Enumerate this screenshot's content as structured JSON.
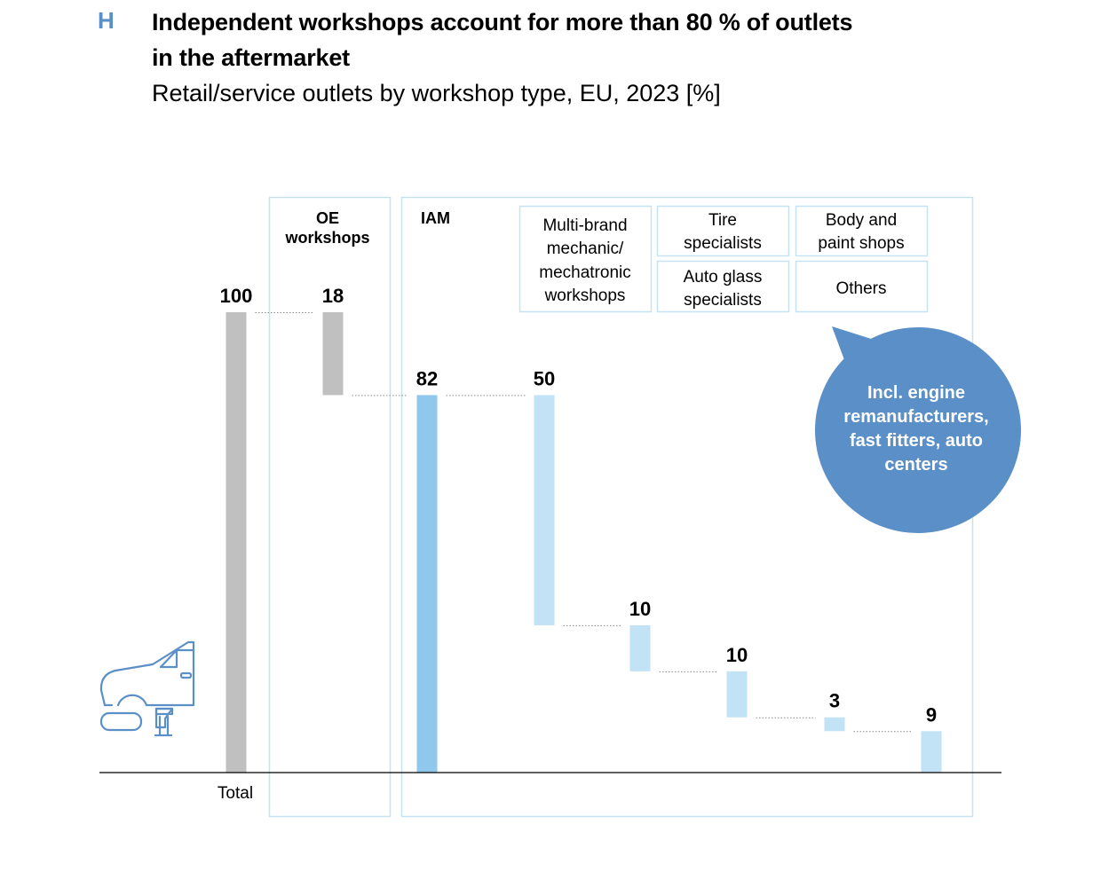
{
  "header": {
    "letter": "H",
    "title": "Independent workshops account for more than 80 % of outlets in the aftermarket",
    "subtitle": "Retail/service outlets by workshop type, EU, 2023 [%]"
  },
  "colors": {
    "accent": "#5b8fc8",
    "total_bar": "#c0c0c0",
    "iam_bar": "#8fc8ec",
    "segment_bar": "#c2e2f6",
    "frame": "#c5e3f2",
    "callout": "#5b8fc8",
    "icon": "#5b8fc8"
  },
  "groups": {
    "oe_line1": "OE",
    "oe_line2": "workshops",
    "iam": "IAM"
  },
  "legend": {
    "multi_brand": [
      "Multi-brand",
      "mechanic/",
      "mechatronic",
      "workshops"
    ],
    "tire": [
      "Tire",
      "specialists"
    ],
    "body": [
      "Body and",
      "paint shops"
    ],
    "glass": [
      "Auto glass",
      "specialists"
    ],
    "others": [
      "Others"
    ]
  },
  "callout": [
    "Incl. engine",
    "remanufacturers,",
    "fast fitters, auto",
    "centers"
  ],
  "icon_name": "car-repair-icon",
  "chart_data": {
    "type": "bar",
    "subtype": "waterfall",
    "title": "Independent workshops account for more than 80 % of outlets in the aftermarket",
    "subtitle": "Retail/service outlets by workshop type, EU, 2023 [%]",
    "unit": "%",
    "x_labels": [
      "Total",
      "",
      "",
      "",
      "",
      "",
      "",
      ""
    ],
    "ylim": [
      0,
      100
    ],
    "bars": [
      {
        "key": "total",
        "value": 100,
        "base": 0,
        "label": "100",
        "style": "total_bar"
      },
      {
        "key": "oe",
        "value": 18,
        "base": 82,
        "label": "18",
        "style": "total_bar"
      },
      {
        "key": "iam",
        "value": 82,
        "base": 0,
        "label": "82",
        "style": "iam_bar"
      },
      {
        "key": "multi_brand",
        "value": 50,
        "base": 32,
        "label": "50",
        "style": "segment_bar"
      },
      {
        "key": "tire",
        "value": 10,
        "base": 22,
        "label": "10",
        "style": "segment_bar"
      },
      {
        "key": "glass",
        "value": 10,
        "base": 12,
        "label": "10",
        "style": "segment_bar"
      },
      {
        "key": "body",
        "value": 3,
        "base": 9,
        "label": "3",
        "style": "segment_bar"
      },
      {
        "key": "others",
        "value": 9,
        "base": 0,
        "label": "9",
        "style": "segment_bar"
      }
    ]
  }
}
